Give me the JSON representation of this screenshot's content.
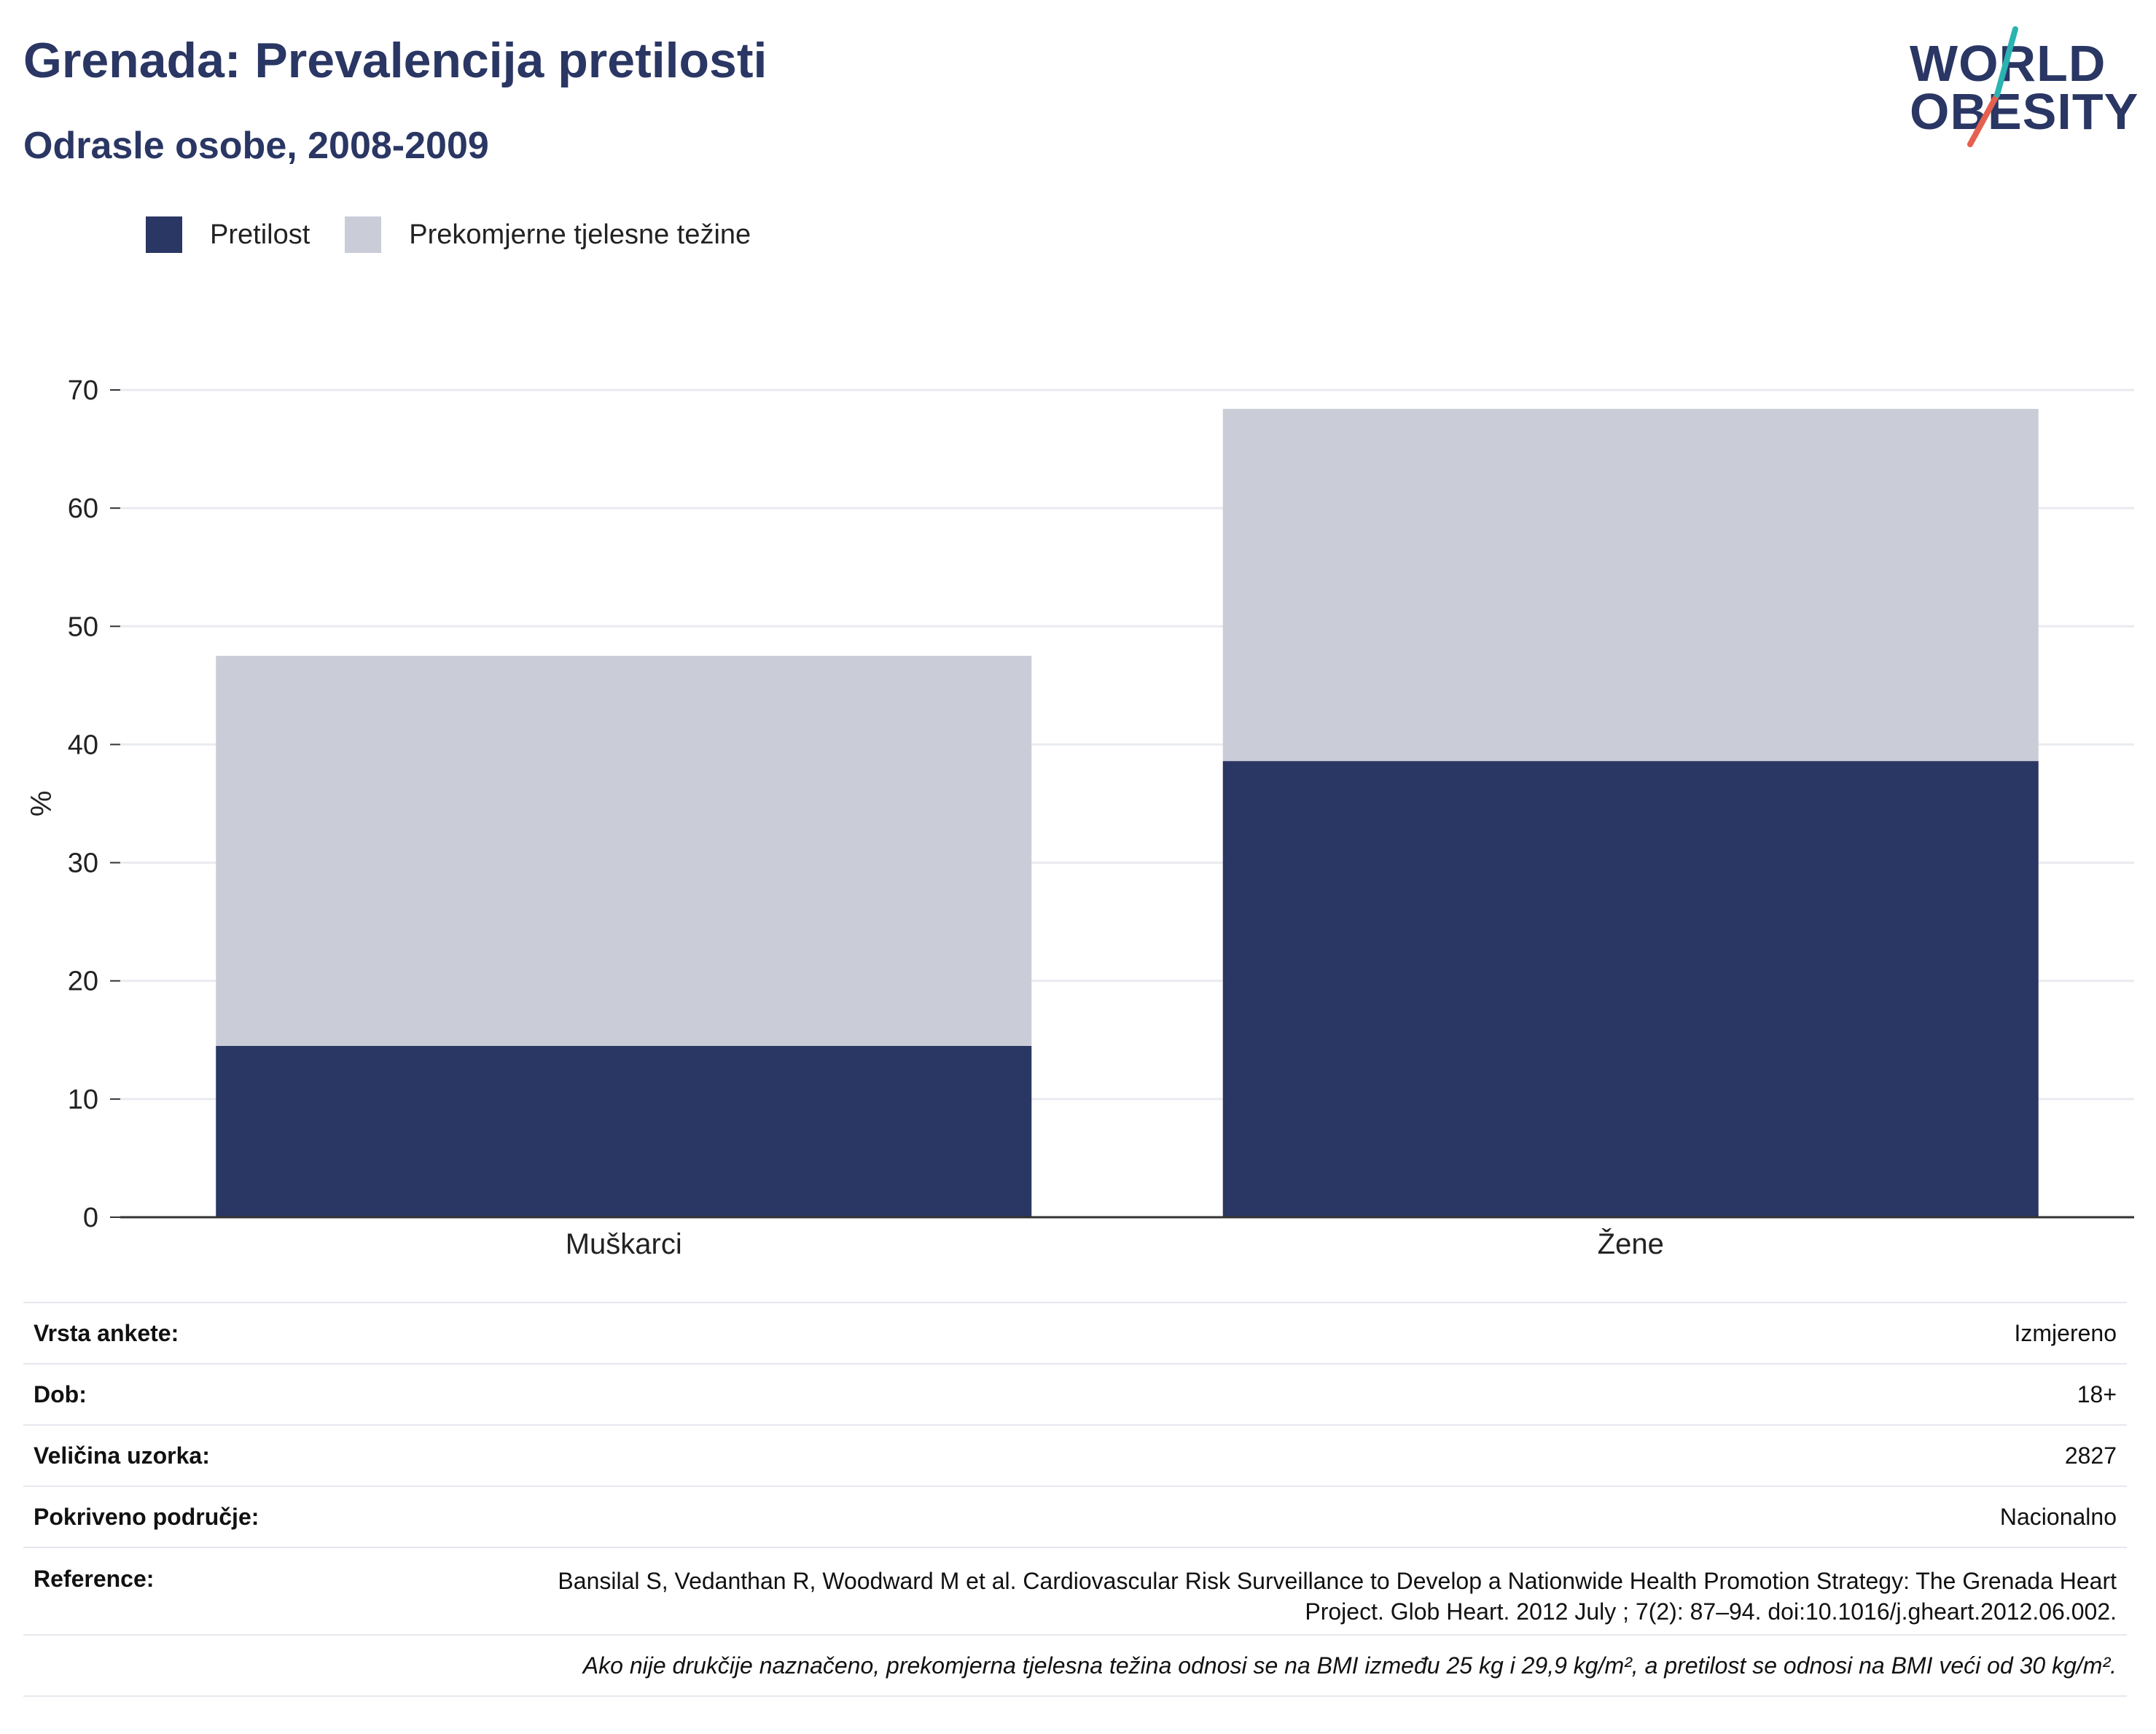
{
  "header": {
    "title": "Grenada: Prevalencija pretilosti",
    "subtitle": "Odrasle osobe, 2008-2009"
  },
  "logo": {
    "line1": "WORLD",
    "line2": "OBESITY"
  },
  "colors": {
    "obesity": "#2a3663",
    "overweight": "#cacdd8",
    "slash_teal": "#2ab3b1",
    "slash_red": "#e5604f",
    "grid": "#e9ebf0",
    "axis": "#333333"
  },
  "chart_data": {
    "type": "bar",
    "stacked": true,
    "categories": [
      "Muškarci",
      "Žene"
    ],
    "series": [
      {
        "name": "Pretilost",
        "values": [
          14.5,
          38.6
        ]
      },
      {
        "name": "Prekomjerne tjelesne težine",
        "values": [
          33.0,
          29.8
        ]
      }
    ],
    "ylabel": "%",
    "xlabel": "",
    "ylim": [
      0,
      70
    ],
    "yticks": [
      0,
      10,
      20,
      30,
      40,
      50,
      60,
      70
    ],
    "grid": true,
    "legend": "top-left"
  },
  "info": {
    "rows": [
      {
        "label": "Vrsta ankete:",
        "value": "Izmjereno"
      },
      {
        "label": "Dob:",
        "value": "18+"
      },
      {
        "label": "Veličina uzorka:",
        "value": "2827"
      },
      {
        "label": "Pokriveno područje:",
        "value": "Nacionalno"
      }
    ],
    "reference_label": "Reference:",
    "reference_value": "Bansilal S, Vedanthan R, Woodward M et al. Cardiovascular Risk Surveillance to Develop a Nationwide Health Promotion Strategy: The Grenada Heart Project. Glob Heart. 2012 July ; 7(2): 87–94. doi:10.1016/j.gheart.2012.06.002.",
    "note": "Ako nije drukčije naznačeno, prekomjerna tjelesna težina odnosi se na BMI između 25 kg i 29,9 kg/m², a pretilost se odnosi na BMI veći od 30 kg/m²."
  }
}
